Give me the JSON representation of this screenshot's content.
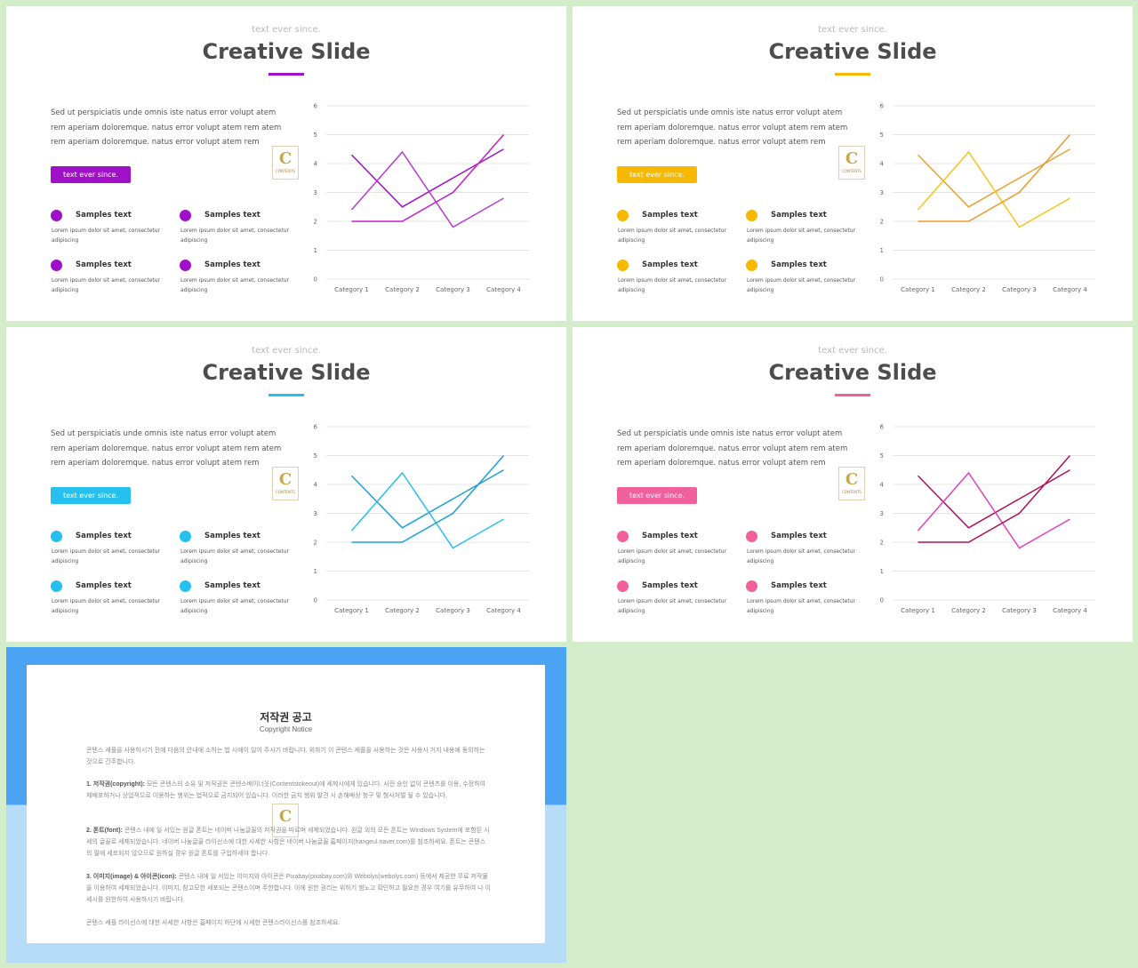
{
  "slides": [
    {
      "kicker": "text ever since.",
      "title": "Creative Slide",
      "accent": "#a010c8",
      "description": "Sed ut perspiciatis unde omnis iste natus error volupt atem rem aperiam doloremque. natus error volupt atem rem atem rem aperiam doloremque. natus error volupt atem rem",
      "button_label": "text ever since.",
      "logo_letter": "C",
      "logo_text": "CONTENTS",
      "samples": [
        {
          "label": "Samples text",
          "sub": "Lorem ipsum dolor sit amet, consectetur adipiscing"
        },
        {
          "label": "Samples text",
          "sub": "Lorem ipsum dolor sit amet, consectetur adipiscing"
        },
        {
          "label": "Samples text",
          "sub": "Lorem ipsum dolor sit amet, consectetur adipiscing"
        },
        {
          "label": "Samples text",
          "sub": "Lorem ipsum dolor sit amet, consectetur adipiscing"
        }
      ],
      "series_colors": [
        "#a010c8",
        "#b43cd2",
        "#c020c8"
      ]
    },
    {
      "kicker": "text ever since.",
      "title": "Creative Slide",
      "accent": "#f7b800",
      "description": "Sed ut perspiciatis unde omnis iste natus error volupt atem rem aperiam doloremque. natus error volupt atem rem atem rem aperiam doloremque. natus error volupt atem rem",
      "button_label": "text ever since.",
      "logo_letter": "C",
      "logo_text": "CONTENTS",
      "samples": [
        {
          "label": "Samples text",
          "sub": "Lorem ipsum dolor sit amet, consectetur adipiscing"
        },
        {
          "label": "Samples text",
          "sub": "Lorem ipsum dolor sit amet, consectetur adipiscing"
        },
        {
          "label": "Samples text",
          "sub": "Lorem ipsum dolor sit amet, consectetur adipiscing"
        },
        {
          "label": "Samples text",
          "sub": "Lorem ipsum dolor sit amet, consectetur adipiscing"
        }
      ],
      "series_colors": [
        "#e8a030",
        "#f5c518",
        "#e89a2a"
      ]
    },
    {
      "kicker": "text ever since.",
      "title": "Creative Slide",
      "accent": "#25c0ee",
      "description": "Sed ut perspiciatis unde omnis iste natus error volupt atem rem aperiam doloremque. natus error volupt atem rem atem rem aperiam doloremque. natus error volupt atem rem",
      "button_label": "text ever since.",
      "logo_letter": "C",
      "logo_text": "CONTENTS",
      "samples": [
        {
          "label": "Samples text",
          "sub": "Lorem ipsum dolor sit amet, consectetur adipiscing"
        },
        {
          "label": "Samples text",
          "sub": "Lorem ipsum dolor sit amet, consectetur adipiscing"
        },
        {
          "label": "Samples text",
          "sub": "Lorem ipsum dolor sit amet, consectetur adipiscing"
        },
        {
          "label": "Samples text",
          "sub": "Lorem ipsum dolor sit amet, consectetur adipiscing"
        }
      ],
      "series_colors": [
        "#1a9fd8",
        "#25c0ee",
        "#1a9fd8"
      ]
    },
    {
      "kicker": "text ever since.",
      "title": "Creative Slide",
      "accent": "#f0609a",
      "description": "Sed ut perspiciatis unde omnis iste natus error volupt atem rem aperiam doloremque. natus error volupt atem rem atem rem aperiam doloremque. natus error volupt atem rem",
      "button_label": "text ever since.",
      "logo_letter": "C",
      "logo_text": "CONTENTS",
      "samples": [
        {
          "label": "Samples text",
          "sub": "Lorem ipsum dolor sit amet, consectetur adipiscing"
        },
        {
          "label": "Samples text",
          "sub": "Lorem ipsum dolor sit amet, consectetur adipiscing"
        },
        {
          "label": "Samples text",
          "sub": "Lorem ipsum dolor sit amet, consectetur adipiscing"
        },
        {
          "label": "Samples text",
          "sub": "Lorem ipsum dolor sit amet, consectetur adipiscing"
        }
      ],
      "series_colors": [
        "#b0105a",
        "#e040c0",
        "#b0105a"
      ]
    }
  ],
  "chart_data": {
    "type": "line",
    "categories": [
      "Category 1",
      "Category 2",
      "Category 3",
      "Category 4"
    ],
    "series": [
      {
        "values": [
          4.3,
          2.5,
          3.5,
          4.5
        ]
      },
      {
        "values": [
          2.4,
          4.4,
          1.8,
          2.8
        ]
      },
      {
        "values": [
          2.0,
          2.0,
          3.0,
          5.0
        ]
      }
    ],
    "ylim": [
      0,
      6
    ],
    "yticks": [
      "0",
      "1",
      "2",
      "3",
      "4",
      "5",
      "6"
    ],
    "grid": true
  },
  "notice": {
    "title": "저작권 공고",
    "subtitle": "Copyright Notice",
    "logo_letter": "C",
    "paragraphs": [
      {
        "head": "",
        "body": "콘텐스 세플을 사용하시기 전에 다음의 안내에 소하는 법 시에이 일어 주시기 바랍니다. 위하기 이 콘텐스 세플을 사용하는 것은 사용시 거지 내용에 동의하는 것으로 간주합니다."
      },
      {
        "head": "1. 저작권(copyright):",
        "body": " 모든 콘텐스의 소유 및 저작권은 콘텐스배이너웃(Contentstokeout)에 세제시에게 있습니다. 사전 승인 없이 콘텐츠를 이용, 수정하여 재배포하거나 상업적으로 이용하는 행위는 법적으로 금지되어 있습니다. 이러한 금지 행위 발견 시 손해배상 청구 및 형사처벌 될 수 있습니다."
      },
      {
        "head": "2. 폰트(font):",
        "body": " 콘텐스 내에 일 서있는 원글 폰트는 네이버 나눔글꼴의 저작권을 따르며 세제되었습니다. 원글 외의 모든 폰트는 Windows System에 포함된 시세의 글꼴로 세제되었습니다. 네이버 나눔글꼴 라이선스에 대한 사세한 사항은 네이버 나눔글꼴 홈페이지(hangeul.naver.com)를 참조하세요. 폰트는 콘텐스의 필에 세포되지 않으므로 원하실 경우 원글 폰트를 구입하세야 합니다."
      },
      {
        "head": "3. 이미지(image) & 아이콘(icon):",
        "body": " 콘텐스 내에 일 서있는 이미지와 아이콘은 Pixabay(pixabay.com)와 Webolys(webolys.com) 등에서 제공한 무료 저작물을 이용하여 세제되었습니다. 이미지, 참고모한 세포되는 콘텐스이며 주한합니다. 이에 원한 권리는 위하기 범노고 확인하고 필요한 경우 여기를 유무하여 나 이세시를 원한하여 사용하시기 바랍니다."
      },
      {
        "head": "",
        "body": "콘텐스 세플 라이선스에 대한 사세한 사항은 홈페이지 하단에 시세한 콘텐스라이선스를 참조하세요."
      }
    ]
  }
}
